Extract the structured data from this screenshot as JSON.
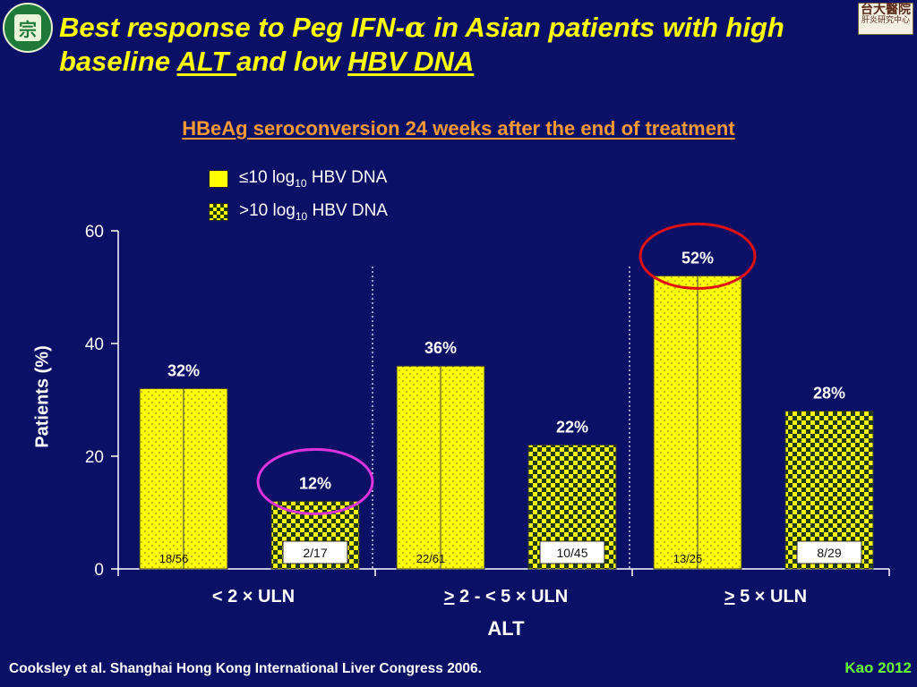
{
  "header": {
    "title_part1": "Best response to Peg IFN-",
    "title_alpha": "α",
    "title_part2": " in Asian patients with high baseline ",
    "title_alt": "ALT ",
    "title_part3": "and low ",
    "title_hbv": "HBV DNA"
  },
  "logos": {
    "left_glyph": "宗",
    "right_line1": "台大醫院",
    "right_line2": "肝炎研究中心"
  },
  "chart_data": {
    "type": "bar",
    "title": "HBeAg seroconversion 24 weeks after the end of treatment",
    "xlabel": "ALT",
    "ylabel": "Patients (%)",
    "ylim": [
      0,
      60
    ],
    "yticks": [
      "0",
      "20",
      "40",
      "60"
    ],
    "categories": [
      {
        "prefix": "< ",
        "underline": "",
        "text": "2 × ULN"
      },
      {
        "prefix": "",
        "underline": ">",
        "text": " 2 - < 5 ×  ULN"
      },
      {
        "prefix": "",
        "underline": ">",
        "text": " 5 ×  ULN"
      }
    ],
    "legend": [
      {
        "pre": "≤10 log",
        "sub": "10",
        "post": " HBV DNA",
        "pattern": "solid"
      },
      {
        "pre": ">10 log",
        "sub": "10",
        "post": " HBV DNA",
        "pattern": "checker"
      }
    ],
    "series": [
      {
        "name": "≤10 log10 HBV DNA",
        "values": [
          32,
          36,
          52
        ],
        "value_labels": [
          "32%",
          "36%",
          "52%"
        ],
        "fractions": [
          "18/56",
          "22/61",
          "13/25"
        ]
      },
      {
        "name": ">10 log10 HBV DNA",
        "values": [
          12,
          22,
          28
        ],
        "value_labels": [
          "12%",
          "22%",
          "28%"
        ],
        "fractions": [
          "2/17",
          "10/45",
          "8/29"
        ]
      }
    ],
    "highlights": [
      {
        "series": 1,
        "category": 0,
        "color": "#dd33dd"
      },
      {
        "series": 0,
        "category": 2,
        "color": "#dd1111"
      }
    ]
  },
  "footer": {
    "citation": "Cooksley et al. Shanghai Hong Kong International Liver Congress 2006.",
    "author": "Kao 2012"
  }
}
